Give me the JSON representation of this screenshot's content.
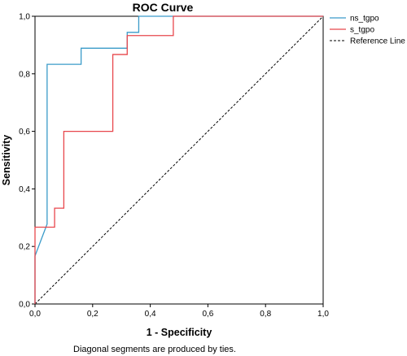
{
  "chart_data": {
    "type": "line",
    "title": "ROC Curve",
    "xlabel": "1 - Specificity",
    "ylabel": "Sensitivity",
    "xlim": [
      0,
      1
    ],
    "ylim": [
      0,
      1
    ],
    "xticks": [
      "0,0",
      "0,2",
      "0,4",
      "0,6",
      "0,8",
      "1,0"
    ],
    "yticks": [
      "0,0",
      "0,2",
      "0,4",
      "0,6",
      "0,8",
      "1,0"
    ],
    "grid": false,
    "legend_position": "top-right",
    "footnote": "Diagonal segments are produced by ties.",
    "series": [
      {
        "name": "ns_tgpo",
        "color": "#3a9bc9",
        "style": "solid",
        "points": [
          [
            0,
            0
          ],
          [
            0,
            0.167
          ],
          [
            0.042,
            0.278
          ],
          [
            0.042,
            0.833
          ],
          [
            0.16,
            0.833
          ],
          [
            0.16,
            0.889
          ],
          [
            0.24,
            0.889
          ],
          [
            0.32,
            0.889
          ],
          [
            0.32,
            0.944
          ],
          [
            0.36,
            0.944
          ],
          [
            0.36,
            1.0
          ],
          [
            1.0,
            1.0
          ]
        ]
      },
      {
        "name": "s_tgpo",
        "color": "#e8474c",
        "style": "solid",
        "points": [
          [
            0,
            0
          ],
          [
            0,
            0.267
          ],
          [
            0.068,
            0.267
          ],
          [
            0.068,
            0.333
          ],
          [
            0.1,
            0.333
          ],
          [
            0.1,
            0.6
          ],
          [
            0.27,
            0.6
          ],
          [
            0.27,
            0.867
          ],
          [
            0.32,
            0.867
          ],
          [
            0.32,
            0.933
          ],
          [
            0.48,
            0.933
          ],
          [
            0.48,
            1.0
          ],
          [
            1.0,
            1.0
          ]
        ]
      },
      {
        "name": "Reference Line",
        "color": "#000000",
        "style": "dashed",
        "points": [
          [
            0,
            0
          ],
          [
            1,
            1
          ]
        ]
      }
    ]
  }
}
